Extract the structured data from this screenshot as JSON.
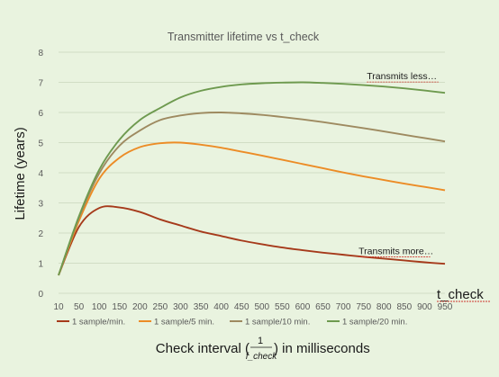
{
  "colors": {
    "background": "#e9f3df",
    "grid": "#c9d6bd",
    "axis_text": "#595959",
    "s1": "#a63a1b",
    "s2": "#ec8c26",
    "s3": "#9e8a60",
    "s4": "#6e9a4f"
  },
  "chart_data": {
    "type": "line",
    "title": "Transmitter lifetime vs t_check",
    "ylabel": "Lifetime (years)",
    "xlabel_prefix": "Check interval (",
    "xlabel_frac_num": "1",
    "xlabel_frac_den": "f_check",
    "xlabel_suffix": ") in milliseconds",
    "x_axis_tag": "t_check",
    "x": [
      10,
      50,
      100,
      150,
      200,
      250,
      300,
      350,
      400,
      450,
      500,
      550,
      600,
      650,
      700,
      750,
      800,
      850,
      900,
      950
    ],
    "ylim": [
      0,
      8
    ],
    "yticks": [
      0,
      1,
      2,
      3,
      4,
      5,
      6,
      7,
      8
    ],
    "grid": true,
    "legend_position": "bottom",
    "annotations": [
      {
        "text": "Transmits less…",
        "x": 760,
        "y": 7.1
      },
      {
        "text": "Transmits more…",
        "x": 740,
        "y": 1.3
      }
    ],
    "series": [
      {
        "name": "1 sample/min.",
        "values": [
          0.6,
          2.2,
          2.83,
          2.85,
          2.7,
          2.45,
          2.25,
          2.05,
          1.9,
          1.75,
          1.63,
          1.52,
          1.43,
          1.35,
          1.28,
          1.21,
          1.15,
          1.09,
          1.03,
          0.98
        ]
      },
      {
        "name": "1 sample/5 min.",
        "values": [
          0.6,
          2.4,
          3.8,
          4.5,
          4.85,
          4.98,
          5.0,
          4.93,
          4.83,
          4.7,
          4.57,
          4.43,
          4.29,
          4.15,
          4.01,
          3.88,
          3.76,
          3.64,
          3.53,
          3.42
        ]
      },
      {
        "name": "1 sample/10 min.",
        "values": [
          0.6,
          2.5,
          3.98,
          4.9,
          5.4,
          5.75,
          5.9,
          5.98,
          6.0,
          5.97,
          5.92,
          5.85,
          5.77,
          5.68,
          5.58,
          5.48,
          5.37,
          5.26,
          5.15,
          5.04
        ]
      },
      {
        "name": "1 sample/20 min.",
        "values": [
          0.6,
          2.55,
          4.1,
          5.1,
          5.75,
          6.15,
          6.5,
          6.72,
          6.85,
          6.93,
          6.97,
          6.99,
          7.0,
          6.98,
          6.95,
          6.91,
          6.86,
          6.8,
          6.73,
          6.65
        ]
      }
    ]
  }
}
